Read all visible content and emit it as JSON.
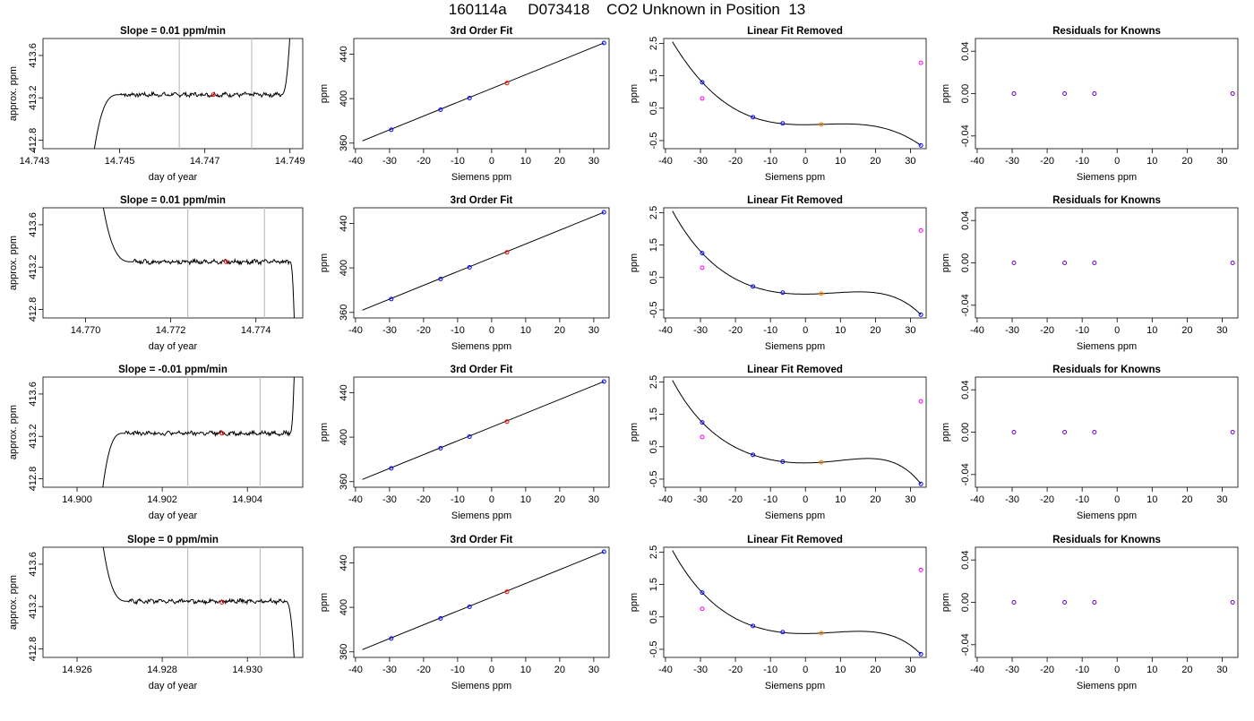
{
  "figure": {
    "title": "160114a     D073418    CO2 Unknown in Position  13"
  },
  "colors": {
    "trace": "#000000",
    "guide_line": "#bebebe",
    "marker_red": "#ff0000",
    "marker_blue": "#0000ff",
    "marker_magenta": "#ff00ff",
    "marker_orange": "#ff7f00",
    "marker_purple": "#6a00c8"
  },
  "chart_data": [
    {
      "type": "line",
      "title": "Slope =  0.01  ppm/min",
      "xlabel": "day of year",
      "ylabel": "approx. ppm",
      "xlim": [
        14.7432,
        14.7493
      ],
      "ylim": [
        412.72,
        413.76
      ],
      "xticks": [
        14.743,
        14.745,
        14.747,
        14.749
      ],
      "xtick_labels": [
        "14.743",
        "14.745",
        "14.747",
        "14.749"
      ],
      "yticks": [
        412.8,
        413.2,
        413.6
      ],
      "ytick_labels": [
        "412.8",
        "413.2",
        "413.6"
      ],
      "guide_lines_x": [
        14.7464,
        14.7481
      ],
      "trace_shape": "rise-plateau-rise",
      "plateau": 413.23,
      "trace_start": [
        14.7444,
        412.7
      ],
      "plateau_start": 14.745,
      "plateau_end": 14.7488,
      "trace_end": [
        14.749,
        413.8
      ],
      "marker": {
        "x": 14.7472,
        "y": 413.23
      }
    },
    {
      "type": "line",
      "title": "3rd Order Fit",
      "xlabel": "Siemens ppm",
      "ylabel": "ppm",
      "xlim": [
        -40.5,
        34.5
      ],
      "ylim": [
        355,
        454
      ],
      "xticks": [
        -40,
        -30,
        -20,
        -10,
        0,
        10,
        20,
        30
      ],
      "xtick_labels": [
        "-40",
        "-30",
        "-20",
        "-10",
        "0",
        "10",
        "20",
        "30"
      ],
      "yticks": [
        360,
        400,
        440
      ],
      "ytick_labels": [
        "360",
        "400",
        "440"
      ],
      "line": [
        [
          -38,
          362
        ],
        [
          33,
          450
        ]
      ],
      "points": [
        {
          "x": -29.5,
          "y": 372,
          "color": "blue"
        },
        {
          "x": -15,
          "y": 390,
          "color": "blue"
        },
        {
          "x": -6.5,
          "y": 400.5,
          "color": "blue"
        },
        {
          "x": 4.5,
          "y": 414,
          "color": "red"
        },
        {
          "x": 33,
          "y": 450,
          "color": "blue"
        }
      ]
    },
    {
      "type": "line",
      "title": "Linear Fit Removed",
      "xlabel": "Siemens ppm",
      "ylabel": "ppm",
      "xlim": [
        -40.5,
        34.5
      ],
      "ylim": [
        -0.75,
        2.65
      ],
      "xticks": [
        -40,
        -30,
        -20,
        -10,
        0,
        10,
        20,
        30
      ],
      "xtick_labels": [
        "-40",
        "-30",
        "-20",
        "-10",
        "0",
        "10",
        "20",
        "30"
      ],
      "yticks": [
        -0.5,
        0.5,
        1.5,
        2.5
      ],
      "ytick_labels": [
        "-0.5",
        "0.5",
        "1.5",
        "2.5"
      ],
      "curve_points": [
        [
          -38,
          2.55
        ],
        [
          -29.5,
          1.3
        ],
        [
          -15,
          0.22
        ],
        [
          -6.5,
          0.02
        ],
        [
          4.5,
          0
        ],
        [
          33,
          -0.65
        ]
      ],
      "points": [
        {
          "x": -29.5,
          "y": 1.3,
          "color": "blue"
        },
        {
          "x": -29.5,
          "y": 0.8,
          "color": "magenta"
        },
        {
          "x": -15,
          "y": 0.22,
          "color": "blue"
        },
        {
          "x": -6.5,
          "y": 0.03,
          "color": "blue"
        },
        {
          "x": 4.5,
          "y": 0,
          "color": "orange"
        },
        {
          "x": 33,
          "y": 1.9,
          "color": "magenta"
        },
        {
          "x": 33,
          "y": -0.65,
          "color": "blue"
        }
      ]
    },
    {
      "type": "scatter",
      "title": "Residuals for Knowns",
      "xlabel": "Siemens ppm",
      "ylabel": "ppm",
      "xlim": [
        -40.5,
        34.5
      ],
      "ylim": [
        -0.052,
        0.052
      ],
      "xticks": [
        -40,
        -30,
        -20,
        -10,
        0,
        10,
        20,
        30
      ],
      "xtick_labels": [
        "-40",
        "-30",
        "-20",
        "-10",
        "0",
        "10",
        "20",
        "30"
      ],
      "yticks": [
        -0.04,
        0,
        0.04
      ],
      "ytick_labels": [
        "-0.04",
        "0.00",
        "0.04"
      ],
      "points": [
        {
          "x": -29.5,
          "y": 0
        },
        {
          "x": -15,
          "y": 0
        },
        {
          "x": -6.5,
          "y": 0
        },
        {
          "x": 33,
          "y": 0
        }
      ]
    },
    {
      "type": "line",
      "title": "Slope =  0.01  ppm/min",
      "xlabel": "day of year",
      "ylabel": "approx. ppm",
      "xlim": [
        14.769,
        14.7751
      ],
      "ylim": [
        412.72,
        413.76
      ],
      "xticks": [
        14.77,
        14.772,
        14.774
      ],
      "xtick_labels": [
        "14.770",
        "14.772",
        "14.774"
      ],
      "yticks": [
        412.8,
        413.2,
        413.6
      ],
      "ytick_labels": [
        "412.8",
        "413.2",
        "413.6"
      ],
      "guide_lines_x": [
        14.7724,
        14.7742
      ],
      "trace_shape": "fall-plateau-fall",
      "plateau": 413.25,
      "trace_start": [
        14.7704,
        413.8
      ],
      "plateau_start": 14.7711,
      "plateau_end": 14.7748,
      "trace_end": [
        14.7749,
        412.7
      ],
      "marker": {
        "x": 14.7733,
        "y": 413.25
      }
    },
    {
      "type": "line",
      "title": "3rd Order Fit",
      "xlabel": "Siemens ppm",
      "ylabel": "ppm",
      "xlim": [
        -40.5,
        34.5
      ],
      "ylim": [
        355,
        454
      ],
      "xticks": [
        -40,
        -30,
        -20,
        -10,
        0,
        10,
        20,
        30
      ],
      "xtick_labels": [
        "-40",
        "-30",
        "-20",
        "-10",
        "0",
        "10",
        "20",
        "30"
      ],
      "yticks": [
        360,
        400,
        440
      ],
      "ytick_labels": [
        "360",
        "400",
        "440"
      ],
      "line": [
        [
          -38,
          362
        ],
        [
          33,
          450
        ]
      ],
      "points": [
        {
          "x": -29.5,
          "y": 372,
          "color": "blue"
        },
        {
          "x": -15,
          "y": 390,
          "color": "blue"
        },
        {
          "x": -6.5,
          "y": 400.5,
          "color": "blue"
        },
        {
          "x": 4.5,
          "y": 414,
          "color": "red"
        },
        {
          "x": 33,
          "y": 450,
          "color": "blue"
        }
      ]
    },
    {
      "type": "line",
      "title": "Linear Fit Removed",
      "xlabel": "Siemens ppm",
      "ylabel": "ppm",
      "xlim": [
        -40.5,
        34.5
      ],
      "ylim": [
        -0.75,
        2.65
      ],
      "xticks": [
        -40,
        -30,
        -20,
        -10,
        0,
        10,
        20,
        30
      ],
      "xtick_labels": [
        "-40",
        "-30",
        "-20",
        "-10",
        "0",
        "10",
        "20",
        "30"
      ],
      "yticks": [
        -0.5,
        0.5,
        1.5,
        2.5
      ],
      "ytick_labels": [
        "-0.5",
        "0.5",
        "1.5",
        "2.5"
      ],
      "curve_points": [
        [
          -38,
          2.55
        ],
        [
          -29.5,
          1.25
        ],
        [
          -15,
          0.22
        ],
        [
          -6.5,
          0.02
        ],
        [
          4.5,
          0
        ],
        [
          33,
          -0.65
        ]
      ],
      "points": [
        {
          "x": -29.5,
          "y": 1.25,
          "color": "blue"
        },
        {
          "x": -29.5,
          "y": 0.8,
          "color": "magenta"
        },
        {
          "x": -15,
          "y": 0.22,
          "color": "blue"
        },
        {
          "x": -6.5,
          "y": 0.03,
          "color": "blue"
        },
        {
          "x": 4.5,
          "y": 0,
          "color": "orange"
        },
        {
          "x": 33,
          "y": 1.95,
          "color": "magenta"
        },
        {
          "x": 33,
          "y": -0.65,
          "color": "blue"
        }
      ]
    },
    {
      "type": "scatter",
      "title": "Residuals for Knowns",
      "xlabel": "Siemens ppm",
      "ylabel": "ppm",
      "xlim": [
        -40.5,
        34.5
      ],
      "ylim": [
        -0.052,
        0.052
      ],
      "xticks": [
        -40,
        -30,
        -20,
        -10,
        0,
        10,
        20,
        30
      ],
      "xtick_labels": [
        "-40",
        "-30",
        "-20",
        "-10",
        "0",
        "10",
        "20",
        "30"
      ],
      "yticks": [
        -0.04,
        0,
        0.04
      ],
      "ytick_labels": [
        "-0.04",
        "0.00",
        "0.04"
      ],
      "points": [
        {
          "x": -29.5,
          "y": 0
        },
        {
          "x": -15,
          "y": 0
        },
        {
          "x": -6.5,
          "y": 0
        },
        {
          "x": 33,
          "y": 0
        }
      ]
    },
    {
      "type": "line",
      "title": "Slope =  -0.01  ppm/min",
      "xlabel": "day of year",
      "ylabel": "approx. ppm",
      "xlim": [
        14.8992,
        14.9053
      ],
      "ylim": [
        412.72,
        413.76
      ],
      "xticks": [
        14.9,
        14.902,
        14.904
      ],
      "xtick_labels": [
        "14.900",
        "14.902",
        "14.904"
      ],
      "yticks": [
        412.8,
        413.2,
        413.6
      ],
      "ytick_labels": [
        "412.8",
        "413.2",
        "413.6"
      ],
      "guide_lines_x": [
        14.9026,
        14.9043
      ],
      "trace_shape": "rise-plateau-rise",
      "plateau": 413.23,
      "trace_start": [
        14.9006,
        412.7
      ],
      "plateau_start": 14.9011,
      "plateau_end": 14.905,
      "trace_end": [
        14.9051,
        413.8
      ],
      "marker": {
        "x": 14.9034,
        "y": 413.23
      }
    },
    {
      "type": "line",
      "title": "3rd Order Fit",
      "xlabel": "Siemens ppm",
      "ylabel": "ppm",
      "xlim": [
        -40.5,
        34.5
      ],
      "ylim": [
        355,
        454
      ],
      "xticks": [
        -40,
        -30,
        -20,
        -10,
        0,
        10,
        20,
        30
      ],
      "xtick_labels": [
        "-40",
        "-30",
        "-20",
        "-10",
        "0",
        "10",
        "20",
        "30"
      ],
      "yticks": [
        360,
        400,
        440
      ],
      "ytick_labels": [
        "360",
        "400",
        "440"
      ],
      "line": [
        [
          -38,
          362
        ],
        [
          33,
          450
        ]
      ],
      "points": [
        {
          "x": -29.5,
          "y": 372,
          "color": "blue"
        },
        {
          "x": -15,
          "y": 390,
          "color": "blue"
        },
        {
          "x": -6.5,
          "y": 400.5,
          "color": "blue"
        },
        {
          "x": 4.5,
          "y": 414,
          "color": "red"
        },
        {
          "x": 33,
          "y": 450,
          "color": "blue"
        }
      ]
    },
    {
      "type": "line",
      "title": "Linear Fit Removed",
      "xlabel": "Siemens ppm",
      "ylabel": "ppm",
      "xlim": [
        -40.5,
        34.5
      ],
      "ylim": [
        -0.75,
        2.65
      ],
      "xticks": [
        -40,
        -30,
        -20,
        -10,
        0,
        10,
        20,
        30
      ],
      "xtick_labels": [
        "-40",
        "-30",
        "-20",
        "-10",
        "0",
        "10",
        "20",
        "30"
      ],
      "yticks": [
        -0.5,
        0.5,
        1.5,
        2.5
      ],
      "ytick_labels": [
        "-0.5",
        "0.5",
        "1.5",
        "2.5"
      ],
      "curve_points": [
        [
          -38,
          2.55
        ],
        [
          -29.5,
          1.25
        ],
        [
          -15,
          0.25
        ],
        [
          -6.5,
          0.04
        ],
        [
          4.5,
          0.02
        ],
        [
          33,
          -0.65
        ]
      ],
      "points": [
        {
          "x": -29.5,
          "y": 1.25,
          "color": "blue"
        },
        {
          "x": -29.5,
          "y": 0.8,
          "color": "magenta"
        },
        {
          "x": -15,
          "y": 0.25,
          "color": "blue"
        },
        {
          "x": -6.5,
          "y": 0.04,
          "color": "blue"
        },
        {
          "x": 4.5,
          "y": 0.02,
          "color": "orange"
        },
        {
          "x": 33,
          "y": 1.9,
          "color": "magenta"
        },
        {
          "x": 33,
          "y": -0.65,
          "color": "blue"
        }
      ]
    },
    {
      "type": "scatter",
      "title": "Residuals for Knowns",
      "xlabel": "Siemens ppm",
      "ylabel": "ppm",
      "xlim": [
        -40.5,
        34.5
      ],
      "ylim": [
        -0.052,
        0.052
      ],
      "xticks": [
        -40,
        -30,
        -20,
        -10,
        0,
        10,
        20,
        30
      ],
      "xtick_labels": [
        "-40",
        "-30",
        "-20",
        "-10",
        "0",
        "10",
        "20",
        "30"
      ],
      "yticks": [
        -0.04,
        0,
        0.04
      ],
      "ytick_labels": [
        "-0.04",
        "0.00",
        "0.04"
      ],
      "points": [
        {
          "x": -29.5,
          "y": 0
        },
        {
          "x": -15,
          "y": 0
        },
        {
          "x": -6.5,
          "y": 0
        },
        {
          "x": 33,
          "y": 0
        }
      ]
    },
    {
      "type": "line",
      "title": "Slope =  0  ppm/min",
      "xlabel": "day of year",
      "ylabel": "approx. ppm",
      "xlim": [
        14.9252,
        14.9313
      ],
      "ylim": [
        412.72,
        413.76
      ],
      "xticks": [
        14.926,
        14.928,
        14.93
      ],
      "xtick_labels": [
        "14.926",
        "14.928",
        "14.930"
      ],
      "yticks": [
        412.8,
        413.2,
        413.6
      ],
      "ytick_labels": [
        "412.8",
        "413.2",
        "413.6"
      ],
      "guide_lines_x": [
        14.9286,
        14.9303
      ],
      "trace_shape": "fall-plateau-fall",
      "plateau": 413.25,
      "trace_start": [
        14.9266,
        413.8
      ],
      "plateau_start": 14.9272,
      "plateau_end": 14.9309,
      "trace_end": [
        14.9311,
        412.7
      ],
      "marker": {
        "x": 14.9294,
        "y": 413.24
      }
    },
    {
      "type": "line",
      "title": "3rd Order Fit",
      "xlabel": "Siemens ppm",
      "ylabel": "ppm",
      "xlim": [
        -40.5,
        34.5
      ],
      "ylim": [
        355,
        454
      ],
      "xticks": [
        -40,
        -30,
        -20,
        -10,
        0,
        10,
        20,
        30
      ],
      "xtick_labels": [
        "-40",
        "-30",
        "-20",
        "-10",
        "0",
        "10",
        "20",
        "30"
      ],
      "yticks": [
        360,
        400,
        440
      ],
      "ytick_labels": [
        "360",
        "400",
        "440"
      ],
      "line": [
        [
          -38,
          362
        ],
        [
          33,
          450
        ]
      ],
      "points": [
        {
          "x": -29.5,
          "y": 372,
          "color": "blue"
        },
        {
          "x": -15,
          "y": 390,
          "color": "blue"
        },
        {
          "x": -6.5,
          "y": 400.5,
          "color": "blue"
        },
        {
          "x": 4.5,
          "y": 414,
          "color": "red"
        },
        {
          "x": 33,
          "y": 450,
          "color": "blue"
        }
      ]
    },
    {
      "type": "line",
      "title": "Linear Fit Removed",
      "xlabel": "Siemens ppm",
      "ylabel": "ppm",
      "xlim": [
        -40.5,
        34.5
      ],
      "ylim": [
        -0.75,
        2.65
      ],
      "xticks": [
        -40,
        -30,
        -20,
        -10,
        0,
        10,
        20,
        30
      ],
      "xtick_labels": [
        "-40",
        "-30",
        "-20",
        "-10",
        "0",
        "10",
        "20",
        "30"
      ],
      "yticks": [
        -0.5,
        0.5,
        1.5,
        2.5
      ],
      "ytick_labels": [
        "-0.5",
        "0.5",
        "1.5",
        "2.5"
      ],
      "curve_points": [
        [
          -38,
          2.55
        ],
        [
          -29.5,
          1.25
        ],
        [
          -15,
          0.22
        ],
        [
          -6.5,
          0.02
        ],
        [
          4.5,
          0
        ],
        [
          33,
          -0.65
        ]
      ],
      "points": [
        {
          "x": -29.5,
          "y": 1.25,
          "color": "blue"
        },
        {
          "x": -29.5,
          "y": 0.75,
          "color": "magenta"
        },
        {
          "x": -15,
          "y": 0.22,
          "color": "blue"
        },
        {
          "x": -6.5,
          "y": 0.03,
          "color": "blue"
        },
        {
          "x": 4.5,
          "y": 0,
          "color": "orange"
        },
        {
          "x": 33,
          "y": 1.95,
          "color": "magenta"
        },
        {
          "x": 33,
          "y": -0.65,
          "color": "blue"
        }
      ]
    },
    {
      "type": "scatter",
      "title": "Residuals for Knowns",
      "xlabel": "Siemens ppm",
      "ylabel": "ppm",
      "xlim": [
        -40.5,
        34.5
      ],
      "ylim": [
        -0.052,
        0.052
      ],
      "xticks": [
        -40,
        -30,
        -20,
        -10,
        0,
        10,
        20,
        30
      ],
      "xtick_labels": [
        "-40",
        "-30",
        "-20",
        "-10",
        "0",
        "10",
        "20",
        "30"
      ],
      "yticks": [
        -0.04,
        0,
        0.04
      ],
      "ytick_labels": [
        "-0.04",
        "0.00",
        "0.04"
      ],
      "points": [
        {
          "x": -29.5,
          "y": 0
        },
        {
          "x": -15,
          "y": 0
        },
        {
          "x": -6.5,
          "y": 0
        },
        {
          "x": 33,
          "y": 0
        }
      ]
    }
  ]
}
